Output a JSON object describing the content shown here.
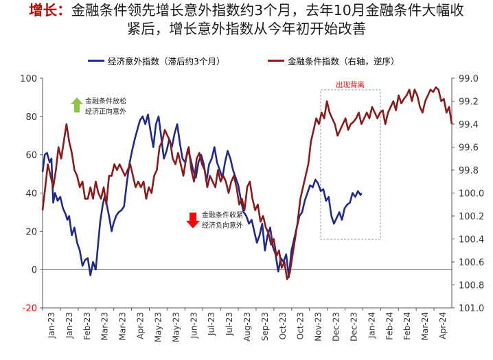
{
  "title": {
    "lead": "增长：",
    "line1_rest": "金融条件领先增长意外指数约3个月，去年10月金融条件大幅收",
    "line2": "紧后，增长意外指数从今年初开始改善"
  },
  "colors": {
    "series_econ": "#1f2a8c",
    "series_fin": "#8b1a1a",
    "up_arrow": "#8dc63f",
    "down_arrow": "#ff0000",
    "title_lead": "#c00000",
    "annotation_red": "#ff0000"
  },
  "chart_data": {
    "type": "line",
    "title": "",
    "x": [
      "2023-01-02",
      "2023-02-01",
      "2023-03-01",
      "2023-04-01",
      "2023-05-01",
      "2023-06-01",
      "2023-07-01",
      "2023-08-01",
      "2023-09-01",
      "2023-10-01",
      "2023-11-01",
      "2023-12-01",
      "2024-01-01",
      "2024-02-01",
      "2024-03-01",
      "2024-04-01"
    ],
    "x_tick_labels": [
      "Jan-23",
      "Jan-23",
      "Feb-23",
      "Mar-23",
      "Mar-23",
      "Apr-23",
      "May-23",
      "May-23",
      "Jun-23",
      "Jul-23",
      "Jul-23",
      "Aug-23",
      "Sep-23",
      "Oct-23",
      "Oct-23",
      "Nov-23",
      "Dec-23",
      "Dec-23",
      "Jan-24",
      "Feb-24",
      "Feb-24",
      "Mar-24",
      "Apr-24"
    ],
    "y_left": {
      "min": -20,
      "max": 100,
      "ticks": [
        100,
        80,
        60,
        40,
        20,
        0,
        -20
      ]
    },
    "y_right": {
      "min": 99.0,
      "max": 101.0,
      "inverted": true,
      "tick_labels": [
        "99.0",
        "99.2",
        "99.4",
        "99.6",
        "99.8",
        "100.0",
        "100.2",
        "100.4",
        "100.6",
        "100.8",
        "101.0"
      ]
    },
    "series": [
      {
        "name": "经济意外指数（滞后约3个月）",
        "axis": "left",
        "color": "#1f2a8c",
        "points": [
          [
            0.0,
            51
          ],
          [
            0.25,
            60
          ],
          [
            0.5,
            61
          ],
          [
            0.8,
            56
          ],
          [
            1.0,
            58
          ],
          [
            1.2,
            35
          ],
          [
            1.4,
            40
          ],
          [
            1.7,
            36
          ],
          [
            2.0,
            38
          ],
          [
            2.3,
            32
          ],
          [
            2.6,
            29
          ],
          [
            2.8,
            26
          ],
          [
            3.0,
            28
          ],
          [
            3.3,
            18
          ],
          [
            3.6,
            22
          ],
          [
            3.9,
            14
          ],
          [
            4.2,
            10
          ],
          [
            4.5,
            2
          ],
          [
            4.8,
            5
          ],
          [
            5.1,
            6
          ],
          [
            5.4,
            -3
          ],
          [
            5.7,
            4
          ],
          [
            6.0,
            0
          ],
          [
            6.2,
            10
          ],
          [
            6.5,
            25
          ],
          [
            6.8,
            34
          ],
          [
            7.0,
            38
          ],
          [
            7.2,
            35
          ],
          [
            7.5,
            28
          ],
          [
            7.8,
            20
          ],
          [
            8.0,
            24
          ],
          [
            8.3,
            28
          ],
          [
            8.6,
            30
          ],
          [
            8.9,
            31
          ],
          [
            9.2,
            33
          ],
          [
            9.5,
            45
          ],
          [
            9.8,
            55
          ],
          [
            10.1,
            62
          ],
          [
            10.4,
            68
          ],
          [
            10.7,
            73
          ],
          [
            11.0,
            78
          ],
          [
            11.3,
            80
          ],
          [
            11.6,
            76
          ],
          [
            11.9,
            81
          ],
          [
            12.2,
            72
          ],
          [
            12.5,
            64
          ],
          [
            12.8,
            76
          ],
          [
            13.1,
            80
          ],
          [
            13.4,
            69
          ],
          [
            13.7,
            58
          ],
          [
            14.0,
            62
          ],
          [
            14.3,
            68
          ],
          [
            14.6,
            64
          ],
          [
            14.9,
            71
          ],
          [
            15.2,
            76
          ],
          [
            15.5,
            66
          ],
          [
            15.8,
            58
          ],
          [
            16.1,
            56
          ],
          [
            16.4,
            63
          ],
          [
            16.7,
            58
          ],
          [
            17.0,
            52
          ],
          [
            17.3,
            48
          ],
          [
            17.6,
            56
          ],
          [
            17.9,
            60
          ],
          [
            18.2,
            55
          ],
          [
            18.5,
            46
          ],
          [
            18.8,
            55
          ],
          [
            19.1,
            58
          ],
          [
            19.4,
            64
          ],
          [
            19.7,
            56
          ],
          [
            20.0,
            52
          ],
          [
            20.3,
            48
          ],
          [
            20.6,
            56
          ],
          [
            20.9,
            62
          ],
          [
            21.2,
            58
          ],
          [
            21.5,
            52
          ],
          [
            21.8,
            48
          ],
          [
            22.1,
            44
          ],
          [
            22.4,
            36
          ],
          [
            22.7,
            30
          ],
          [
            23.0,
            28
          ],
          [
            23.3,
            24
          ],
          [
            23.6,
            26
          ],
          [
            23.9,
            20
          ],
          [
            24.2,
            14
          ],
          [
            24.5,
            18
          ],
          [
            24.8,
            24
          ],
          [
            25.1,
            10
          ],
          [
            25.4,
            18
          ],
          [
            25.7,
            22
          ],
          [
            26.0,
            12
          ],
          [
            26.3,
            8
          ],
          [
            26.6,
            -1
          ],
          [
            26.9,
            6
          ],
          [
            27.2,
            4
          ],
          [
            27.5,
            8
          ],
          [
            27.8,
            -4
          ],
          [
            28.1,
            10
          ],
          [
            28.4,
            16
          ],
          [
            28.7,
            22
          ],
          [
            29.0,
            28
          ],
          [
            29.3,
            30
          ],
          [
            29.6,
            36
          ],
          [
            29.9,
            40
          ],
          [
            30.2,
            44
          ],
          [
            30.5,
            43
          ],
          [
            30.8,
            47
          ],
          [
            31.1,
            45
          ],
          [
            31.4,
            41
          ],
          [
            31.7,
            42
          ],
          [
            32.0,
            36
          ],
          [
            32.3,
            38
          ],
          [
            32.6,
            28
          ],
          [
            32.9,
            24
          ],
          [
            33.2,
            27
          ],
          [
            33.5,
            30
          ],
          [
            33.8,
            26
          ],
          [
            34.1,
            32
          ],
          [
            34.4,
            34
          ],
          [
            34.7,
            35
          ],
          [
            35.0,
            40
          ],
          [
            35.3,
            38
          ],
          [
            35.6,
            41
          ],
          [
            35.9,
            39
          ],
          [
            36.0,
            40
          ]
        ]
      },
      {
        "name": "金融条件指数（右轴，逆序）",
        "axis": "right",
        "color": "#8b1a1a",
        "points": [
          [
            0.0,
            100.15
          ],
          [
            0.3,
            99.95
          ],
          [
            0.6,
            99.75
          ],
          [
            0.9,
            99.85
          ],
          [
            1.2,
            99.95
          ],
          [
            1.5,
            99.8
          ],
          [
            1.8,
            99.6
          ],
          [
            2.1,
            99.7
          ],
          [
            2.4,
            99.55
          ],
          [
            2.7,
            99.4
          ],
          [
            3.0,
            99.55
          ],
          [
            3.3,
            99.65
          ],
          [
            3.6,
            99.8
          ],
          [
            3.9,
            99.85
          ],
          [
            4.2,
            99.95
          ],
          [
            4.5,
            99.9
          ],
          [
            4.8,
            100.05
          ],
          [
            5.1,
            100.05
          ],
          [
            5.4,
            99.95
          ],
          [
            5.7,
            100.05
          ],
          [
            6.0,
            99.9
          ],
          [
            6.3,
            100.0
          ],
          [
            6.6,
            100.05
          ],
          [
            6.9,
            99.95
          ],
          [
            7.2,
            100.1
          ],
          [
            7.5,
            99.85
          ],
          [
            7.8,
            99.85
          ],
          [
            8.1,
            99.75
          ],
          [
            8.4,
            99.8
          ],
          [
            8.7,
            99.75
          ],
          [
            9.0,
            99.8
          ],
          [
            9.3,
            99.85
          ],
          [
            9.6,
            99.8
          ],
          [
            9.9,
            99.75
          ],
          [
            10.2,
            99.85
          ],
          [
            10.5,
            99.95
          ],
          [
            10.8,
            99.9
          ],
          [
            11.1,
            99.95
          ],
          [
            11.4,
            99.9
          ],
          [
            11.7,
            100.05
          ],
          [
            12.0,
            99.95
          ],
          [
            12.3,
            100.0
          ],
          [
            12.6,
            99.85
          ],
          [
            12.9,
            99.8
          ],
          [
            13.2,
            99.6
          ],
          [
            13.5,
            99.55
          ],
          [
            13.8,
            99.45
          ],
          [
            14.1,
            99.5
          ],
          [
            14.4,
            99.55
          ],
          [
            14.7,
            99.7
          ],
          [
            15.0,
            99.75
          ],
          [
            15.3,
            99.65
          ],
          [
            15.6,
            99.75
          ],
          [
            15.9,
            99.85
          ],
          [
            16.2,
            99.7
          ],
          [
            16.5,
            99.6
          ],
          [
            16.8,
            99.8
          ],
          [
            17.1,
            99.9
          ],
          [
            17.4,
            99.7
          ],
          [
            17.7,
            99.65
          ],
          [
            18.0,
            99.75
          ],
          [
            18.3,
            99.8
          ],
          [
            18.6,
            99.95
          ],
          [
            18.9,
            99.85
          ],
          [
            19.2,
            99.9
          ],
          [
            19.5,
            99.95
          ],
          [
            19.8,
            99.8
          ],
          [
            20.1,
            99.9
          ],
          [
            20.4,
            99.85
          ],
          [
            20.7,
            99.9
          ],
          [
            21.0,
            100.0
          ],
          [
            21.3,
            99.9
          ],
          [
            21.6,
            99.85
          ],
          [
            21.9,
            99.95
          ],
          [
            22.2,
            100.1
          ],
          [
            22.5,
            100.05
          ],
          [
            22.8,
            100.15
          ],
          [
            23.1,
            99.95
          ],
          [
            23.4,
            99.9
          ],
          [
            23.7,
            100.05
          ],
          [
            24.0,
            100.15
          ],
          [
            24.3,
            100.1
          ],
          [
            24.6,
            100.25
          ],
          [
            24.9,
            100.2
          ],
          [
            25.2,
            100.3
          ],
          [
            25.5,
            100.35
          ],
          [
            25.8,
            100.45
          ],
          [
            26.1,
            100.4
          ],
          [
            26.4,
            100.55
          ],
          [
            26.7,
            100.5
          ],
          [
            27.0,
            100.65
          ],
          [
            27.3,
            100.6
          ],
          [
            27.6,
            100.75
          ],
          [
            27.9,
            100.7
          ],
          [
            28.2,
            100.55
          ],
          [
            28.5,
            100.4
          ],
          [
            28.8,
            100.25
          ],
          [
            29.1,
            100.05
          ],
          [
            29.4,
            99.95
          ],
          [
            29.7,
            99.85
          ],
          [
            30.0,
            99.75
          ],
          [
            30.3,
            99.55
          ],
          [
            30.6,
            99.45
          ],
          [
            30.9,
            99.35
          ],
          [
            31.2,
            99.4
          ],
          [
            31.5,
            99.3
          ],
          [
            31.8,
            99.35
          ],
          [
            32.1,
            99.2
          ],
          [
            32.4,
            99.3
          ],
          [
            32.7,
            99.35
          ],
          [
            33.0,
            99.4
          ],
          [
            33.3,
            99.5
          ],
          [
            33.6,
            99.45
          ],
          [
            33.9,
            99.4
          ],
          [
            34.2,
            99.35
          ],
          [
            34.5,
            99.45
          ],
          [
            34.8,
            99.4
          ],
          [
            35.1,
            99.38
          ],
          [
            35.4,
            99.35
          ],
          [
            35.7,
            99.3
          ],
          [
            36.0,
            99.4
          ],
          [
            36.3,
            99.35
          ],
          [
            36.6,
            99.3
          ],
          [
            36.9,
            99.35
          ],
          [
            37.2,
            99.25
          ],
          [
            37.5,
            99.3
          ],
          [
            37.8,
            99.35
          ],
          [
            38.1,
            99.3
          ],
          [
            38.4,
            99.28
          ],
          [
            38.7,
            99.4
          ],
          [
            39.0,
            99.3
          ],
          [
            39.3,
            99.25
          ],
          [
            39.6,
            99.2
          ],
          [
            39.9,
            99.28
          ],
          [
            40.2,
            99.15
          ],
          [
            40.5,
            99.22
          ],
          [
            40.8,
            99.18
          ],
          [
            41.1,
            99.15
          ],
          [
            41.4,
            99.1
          ],
          [
            41.7,
            99.2
          ],
          [
            42.0,
            99.1
          ],
          [
            42.3,
            99.15
          ],
          [
            42.6,
            99.25
          ],
          [
            42.9,
            99.3
          ],
          [
            43.2,
            99.2
          ],
          [
            43.5,
            99.15
          ],
          [
            43.8,
            99.1
          ],
          [
            44.1,
            99.12
          ],
          [
            44.4,
            99.08
          ],
          [
            44.7,
            99.1
          ],
          [
            45.0,
            99.2
          ],
          [
            45.3,
            99.18
          ],
          [
            45.6,
            99.3
          ],
          [
            45.9,
            99.25
          ],
          [
            46.2,
            99.4
          ]
        ]
      }
    ],
    "legend": "top",
    "grid": false,
    "annotations": {
      "box_label": "出现背离",
      "up_note_1": "金融条件放松",
      "up_note_2": "经济正向意外",
      "down_note_1": "金融条件收紧",
      "down_note_2": "经济负向意外"
    }
  }
}
